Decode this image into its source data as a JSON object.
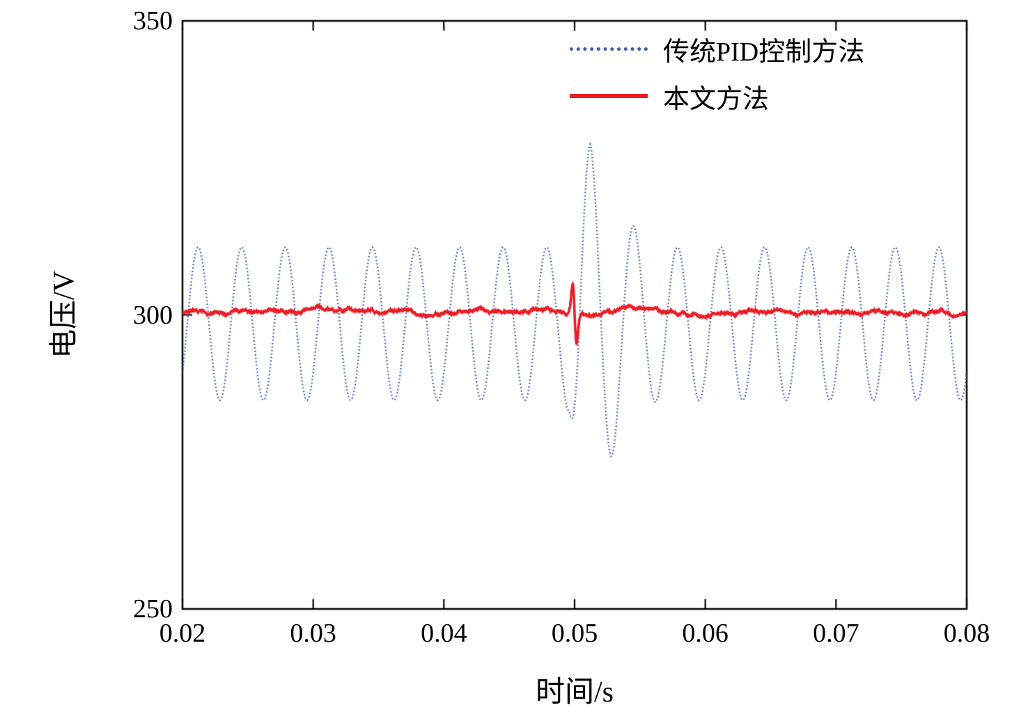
{
  "figure": {
    "background_color": "#ffffff",
    "axis_color": "#000000"
  },
  "chart_data": {
    "type": "line",
    "title": "",
    "xlabel": "时间/s",
    "ylabel": "电压/V",
    "xlim": [
      0.02,
      0.08
    ],
    "ylim": [
      250,
      350
    ],
    "grid": false,
    "legend_position": "top-right-inside",
    "xticks": [
      {
        "v": 0.02,
        "label": "0.02"
      },
      {
        "v": 0.03,
        "label": "0.03"
      },
      {
        "v": 0.04,
        "label": "0.04"
      },
      {
        "v": 0.05,
        "label": "0.05"
      },
      {
        "v": 0.06,
        "label": "0.06"
      },
      {
        "v": 0.07,
        "label": "0.07"
      },
      {
        "v": 0.08,
        "label": "0.08"
      }
    ],
    "yticks": [
      {
        "v": 250,
        "label": "250"
      },
      {
        "v": 300,
        "label": "300"
      },
      {
        "v": 350,
        "label": "350"
      }
    ],
    "series": [
      {
        "name": "传统PID控制方法",
        "color": "#3b5eb0",
        "line_style": "dotted",
        "line_width": 2.4,
        "model": {
          "kind": "sinusoid-with-disturbance",
          "baseline_v": 298.5,
          "amplitude_v": 13,
          "frequency_hz": 300,
          "first_peak_s": 0.0212,
          "disturbance_envelope": [
            [
              0.0488,
              1.0
            ],
            [
              0.0496,
              1.15
            ],
            [
              0.0504,
              2.2
            ],
            [
              0.0512,
              2.35
            ],
            [
              0.052,
              1.95
            ],
            [
              0.0528,
              1.75
            ],
            [
              0.0536,
              1.45
            ],
            [
              0.0545,
              1.28
            ],
            [
              0.0555,
              1.08
            ],
            [
              0.0565,
              1.0
            ]
          ]
        },
        "key_points": {
          "steady_peak_v": 311.5,
          "steady_trough_v": 285.5,
          "disturbance_time_s": 0.05,
          "disturbance_peak_v": 330,
          "disturbance_trough_v": 276,
          "recovery_time_s": 0.057
        }
      },
      {
        "name": "本文方法",
        "color": "#ec1c24",
        "line_style": "solid",
        "line_width": 3.6,
        "model": {
          "kind": "flat-with-noise",
          "baseline_v": 300.5,
          "noise_amplitude_v": 0.7,
          "spike": {
            "time_s": 0.05,
            "peak_v": 305.5,
            "trough_v": 295.5,
            "width_s": 0.0006
          }
        },
        "key_points": {
          "steady_value_v": 300.5,
          "disturbance_time_s": 0.05,
          "disturbance_peak_v": 305.5,
          "disturbance_trough_v": 295.5
        }
      }
    ]
  }
}
